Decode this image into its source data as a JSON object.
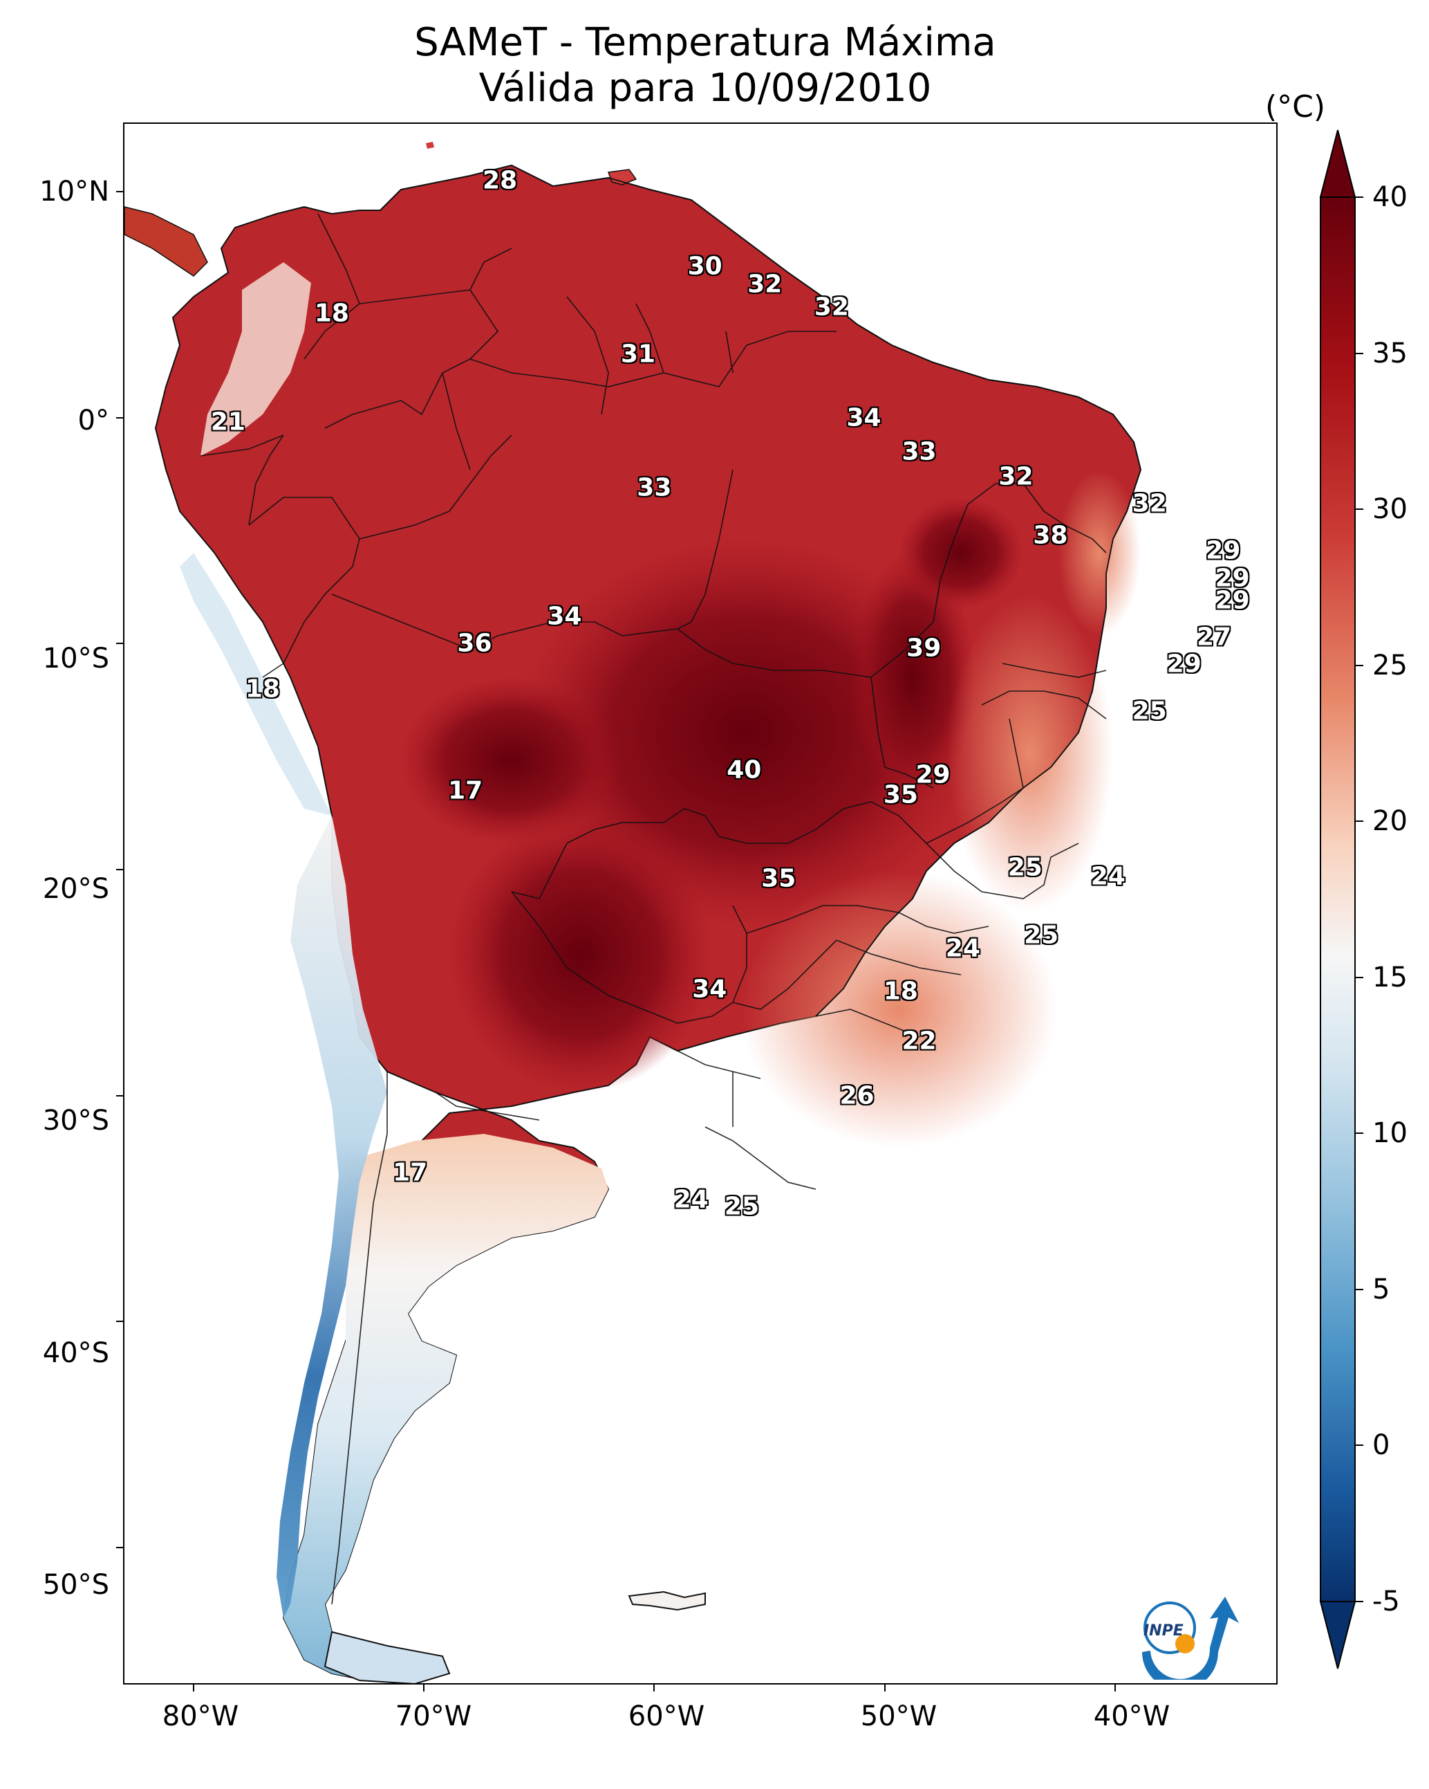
{
  "title": {
    "line1": "SAMeT - Temperatura Máxima",
    "line2": "Válida para 10/09/2010"
  },
  "map": {
    "lon_range": [
      -83,
      -33
    ],
    "lat_range": [
      -56,
      13
    ],
    "lat_ticks": [
      {
        "label": "10°N",
        "value": 10
      },
      {
        "label": "0°",
        "value": 0
      },
      {
        "label": "10°S",
        "value": -10
      },
      {
        "label": "20°S",
        "value": -20
      },
      {
        "label": "30°S",
        "value": -30
      },
      {
        "label": "40°S",
        "value": -40
      },
      {
        "label": "50°S",
        "value": -50
      }
    ],
    "lon_ticks": [
      {
        "label": "80°W",
        "value": -80
      },
      {
        "label": "70°W",
        "value": -70
      },
      {
        "label": "60°W",
        "value": -60
      },
      {
        "label": "50°W",
        "value": -50
      },
      {
        "label": "40°W",
        "value": -40
      }
    ]
  },
  "city_values": [
    {
      "text": "28",
      "lon": -66.7,
      "lat": 10.5
    },
    {
      "text": "18",
      "lon": -74.0,
      "lat": 4.6
    },
    {
      "text": "30",
      "lon": -57.8,
      "lat": 6.7
    },
    {
      "text": "32",
      "lon": -55.2,
      "lat": 5.9
    },
    {
      "text": "32",
      "lon": -52.3,
      "lat": 4.9
    },
    {
      "text": "31",
      "lon": -60.7,
      "lat": 2.8
    },
    {
      "text": "34",
      "lon": -50.9,
      "lat": 0.0
    },
    {
      "text": "21",
      "lon": -78.5,
      "lat": -0.2
    },
    {
      "text": "33",
      "lon": -48.5,
      "lat": -1.5
    },
    {
      "text": "32",
      "lon": -44.3,
      "lat": -2.6
    },
    {
      "text": "33",
      "lon": -60.0,
      "lat": -3.1
    },
    {
      "text": "32",
      "lon": -38.5,
      "lat": -3.8
    },
    {
      "text": "38",
      "lon": -42.8,
      "lat": -5.2
    },
    {
      "text": "29",
      "lon": -35.3,
      "lat": -5.9
    },
    {
      "text": "29",
      "lon": -34.9,
      "lat": -7.1
    },
    {
      "text": "29",
      "lon": -34.9,
      "lat": -8.1
    },
    {
      "text": "34",
      "lon": -63.9,
      "lat": -8.8
    },
    {
      "text": "27",
      "lon": -35.7,
      "lat": -9.7
    },
    {
      "text": "36",
      "lon": -67.8,
      "lat": -10.0
    },
    {
      "text": "39",
      "lon": -48.3,
      "lat": -10.2
    },
    {
      "text": "29",
      "lon": -37.0,
      "lat": -10.9
    },
    {
      "text": "18",
      "lon": -77.0,
      "lat": -12.0
    },
    {
      "text": "25",
      "lon": -38.5,
      "lat": -13.0
    },
    {
      "text": "40",
      "lon": -56.1,
      "lat": -15.6
    },
    {
      "text": "29",
      "lon": -47.9,
      "lat": -15.8
    },
    {
      "text": "35",
      "lon": -49.3,
      "lat": -16.7
    },
    {
      "text": "17",
      "lon": -68.2,
      "lat": -16.5
    },
    {
      "text": "25",
      "lon": -43.9,
      "lat": -19.9
    },
    {
      "text": "24",
      "lon": -40.3,
      "lat": -20.3
    },
    {
      "text": "35",
      "lon": -54.6,
      "lat": -20.4
    },
    {
      "text": "25",
      "lon": -43.2,
      "lat": -22.9
    },
    {
      "text": "24",
      "lon": -46.6,
      "lat": -23.5
    },
    {
      "text": "34",
      "lon": -57.6,
      "lat": -25.3
    },
    {
      "text": "18",
      "lon": -49.3,
      "lat": -25.4
    },
    {
      "text": "22",
      "lon": -48.5,
      "lat": -27.6
    },
    {
      "text": "26",
      "lon": -51.2,
      "lat": -30.0
    },
    {
      "text": "17",
      "lon": -70.6,
      "lat": -33.4
    },
    {
      "text": "24",
      "lon": -58.4,
      "lat": -34.6
    },
    {
      "text": "25",
      "lon": -56.2,
      "lat": -34.9
    }
  ],
  "colorbar": {
    "unit": "(°C)",
    "min": -5,
    "max": 40,
    "ticks": [
      "40",
      "35",
      "30",
      "25",
      "20",
      "15",
      "10",
      "5",
      "0",
      "-5"
    ]
  },
  "logo": {
    "text": "INPE"
  }
}
